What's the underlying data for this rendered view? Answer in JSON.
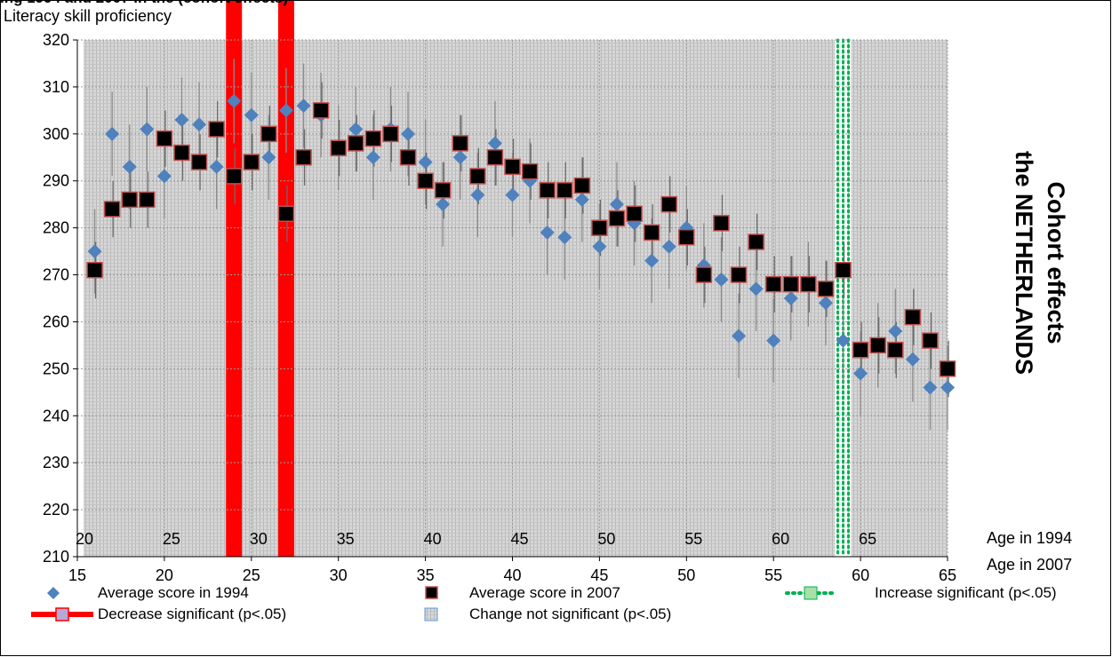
{
  "page": {
    "header_clip": "ing 1994 and 2007 in the  (cohort effects)",
    "ylabel": "Literacy skill proficiency",
    "side_title_line1": "Cohort effects",
    "side_title_line2": "the NETHERLANDS",
    "x_axis_name_1994": "Age in 1994",
    "x_axis_name_2007": "Age in 2007"
  },
  "colors": {
    "score1994": "#4f81bd",
    "score2007_fill": "#000000",
    "score2007_edge": "#c0504d",
    "decrease": "#ff0000",
    "increase": "#00b050",
    "notsig_band": "#c8c8c8"
  },
  "legend": {
    "items": [
      {
        "label": "Average score in 1994"
      },
      {
        "label": "Average score in 2007"
      },
      {
        "label": "Increase significant (p<.05)"
      },
      {
        "label": "Decrease significant (p<.05)"
      },
      {
        "label": "Change not significant (p<.05)"
      }
    ]
  },
  "chart_data": {
    "type": "scatter",
    "title": "",
    "ylabel": "Literacy skill proficiency",
    "xlabel": "Age in 2007",
    "xlabel_secondary": "Age in 1994",
    "xlim": [
      15,
      65
    ],
    "ylim": [
      210,
      320
    ],
    "yticks": [
      210,
      220,
      230,
      240,
      250,
      260,
      270,
      280,
      290,
      300,
      310,
      320
    ],
    "xticks_2007": [
      15,
      20,
      25,
      30,
      35,
      40,
      45,
      50,
      55,
      60,
      65
    ],
    "xticks_1994_labels": [
      "20",
      "25",
      "30",
      "35",
      "40",
      "45",
      "50",
      "55",
      "60",
      "65"
    ],
    "grid": true,
    "legend_position": "bottom",
    "series": [
      {
        "name": "Average score in 1994",
        "marker": "diamond",
        "x": [
          16,
          17,
          18,
          19,
          20,
          21,
          22,
          23,
          24,
          25,
          26,
          27,
          28,
          29,
          30,
          31,
          32,
          33,
          34,
          35,
          36,
          37,
          38,
          39,
          40,
          41,
          42,
          43,
          44,
          45,
          46,
          47,
          48,
          49,
          50,
          51,
          52,
          53,
          54,
          55,
          56,
          57,
          58,
          59,
          60,
          61,
          62,
          63,
          64,
          65
        ],
        "values": [
          275,
          300,
          293,
          301,
          291,
          303,
          302,
          293,
          307,
          304,
          295,
          305,
          306,
          304,
          297,
          301,
          295,
          301,
          300,
          294,
          285,
          295,
          287,
          298,
          287,
          290,
          279,
          278,
          286,
          276,
          285,
          281,
          273,
          276,
          280,
          272,
          269,
          257,
          267,
          256,
          265,
          268,
          264,
          256,
          249,
          255,
          258,
          252,
          246,
          246
        ]
      },
      {
        "name": "Average score in 2007",
        "marker": "square",
        "x": [
          16,
          17,
          18,
          19,
          20,
          21,
          22,
          23,
          24,
          25,
          26,
          27,
          28,
          29,
          30,
          31,
          32,
          33,
          34,
          35,
          36,
          37,
          38,
          39,
          40,
          41,
          42,
          43,
          44,
          45,
          46,
          47,
          48,
          49,
          50,
          51,
          52,
          53,
          54,
          55,
          56,
          57,
          58,
          59,
          60,
          61,
          62,
          63,
          64,
          65
        ],
        "values": [
          271,
          284,
          286,
          286,
          299,
          296,
          294,
          301,
          291,
          294,
          300,
          283,
          295,
          305,
          297,
          298,
          299,
          300,
          295,
          290,
          288,
          298,
          291,
          295,
          293,
          292,
          288,
          288,
          289,
          280,
          282,
          283,
          279,
          285,
          278,
          270,
          281,
          270,
          277,
          268,
          268,
          268,
          267,
          271,
          254,
          255,
          254,
          261,
          256,
          250
        ]
      }
    ],
    "significance": {
      "decrease_ages_2007": [
        24,
        27
      ],
      "increase_ages_2007": [
        59
      ],
      "not_significant": "all other ages"
    }
  }
}
